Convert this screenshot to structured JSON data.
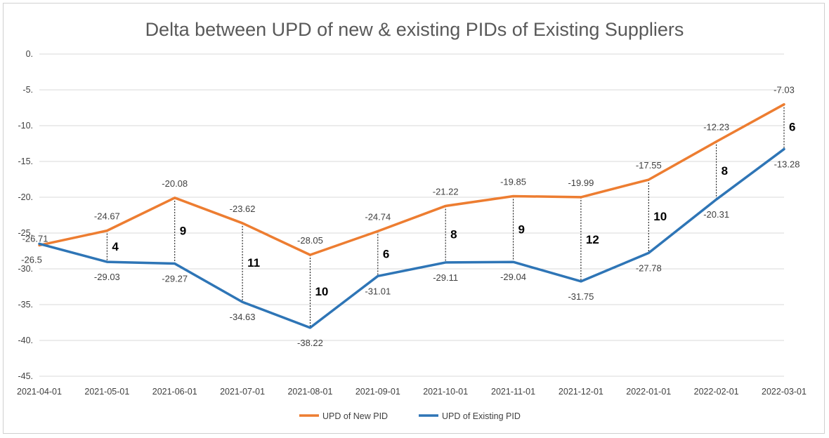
{
  "chart_data": {
    "type": "line",
    "title": "Delta between UPD of new & existing PIDs of Existing Suppliers",
    "xlabel": "",
    "ylabel": "",
    "categories": [
      "2021-04-01",
      "2021-05-01",
      "2021-06-01",
      "2021-07-01",
      "2021-08-01",
      "2021-09-01",
      "2021-10-01",
      "2021-11-01",
      "2021-12-01",
      "2022-01-01",
      "2022-02-01",
      "2022-03-01"
    ],
    "ylim": [
      -45,
      0
    ],
    "y_ticks": [
      0,
      -5,
      -10,
      -15,
      -20,
      -25,
      -30,
      -35,
      -40,
      -45
    ],
    "y_tick_labels": [
      "0.",
      "-5.",
      "-10.",
      "-15.",
      "-20.",
      "-25.",
      "-30.",
      "-35.",
      "-40.",
      "-45."
    ],
    "grid": true,
    "legend_position": "bottom",
    "series": [
      {
        "name": "UPD of New PID",
        "color": "#ED7D31",
        "values": [
          -26.71,
          -24.67,
          -20.08,
          -23.62,
          -28.05,
          -24.74,
          -21.22,
          -19.85,
          -19.99,
          -17.55,
          -12.23,
          -7.03
        ],
        "labels": [
          "-26.71",
          "-24.67",
          "-20.08",
          "-23.62",
          "-28.05",
          "-24.74",
          "-21.22",
          "-19.85",
          "-19.99",
          "-17.55",
          "-12.23",
          "-7.03"
        ]
      },
      {
        "name": "UPD of Existing PID",
        "color": "#2E75B6",
        "values": [
          -26.5,
          -29.03,
          -29.27,
          -34.63,
          -38.22,
          -31.01,
          -29.11,
          -29.04,
          -31.75,
          -27.78,
          -20.31,
          -13.28
        ],
        "labels": [
          "-26.5",
          "-29.03",
          "-29.27",
          "-34.63",
          "-38.22",
          "-31.01",
          "-29.11",
          "-29.04",
          "-31.75",
          "-27.78",
          "-20.31",
          "-13.28"
        ]
      }
    ],
    "deltas": [
      null,
      "4",
      "9",
      "11",
      "10",
      "6",
      "8",
      "9",
      "12",
      "10",
      "8",
      "6"
    ]
  }
}
